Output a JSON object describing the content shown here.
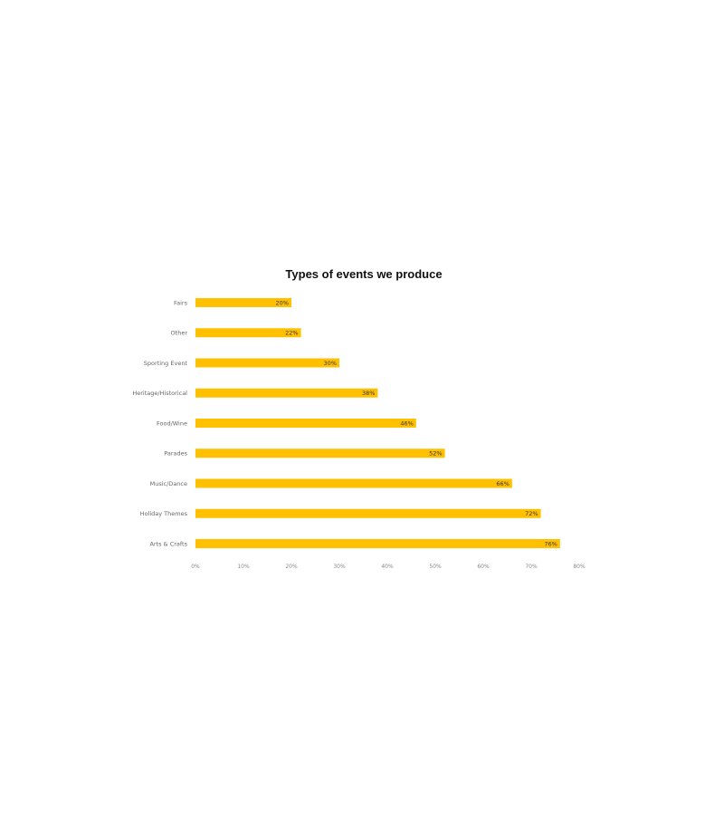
{
  "chart_data": {
    "type": "bar",
    "orientation": "horizontal",
    "title": "Types of events we produce",
    "categories": [
      "Fairs",
      "Other",
      "Sporting Event",
      "Heritage/Historical",
      "Food/Wine",
      "Parades",
      "Music/Dance",
      "Holiday Themes",
      "Arts & Crafts"
    ],
    "values": [
      20,
      22,
      30,
      38,
      46,
      52,
      66,
      72,
      76
    ],
    "value_labels": [
      "20%",
      "22%",
      "30%",
      "38%",
      "46%",
      "52%",
      "66%",
      "72%",
      "76%"
    ],
    "x_ticks": [
      "0%",
      "10%",
      "20%",
      "30%",
      "40%",
      "50%",
      "60%",
      "70%",
      "80%"
    ],
    "xlim": [
      0,
      80
    ],
    "xlabel": "",
    "ylabel": "",
    "grid": false,
    "legend": "none",
    "bar_color": "#FFC000"
  }
}
